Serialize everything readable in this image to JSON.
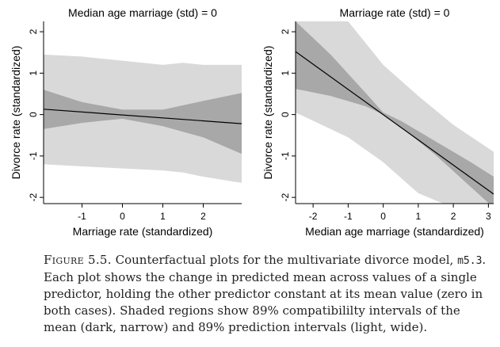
{
  "chart_data": [
    {
      "type": "line",
      "title": "Median age marriage (std) = 0",
      "xlabel": "Marriage rate (standardized)",
      "ylabel": "Divorce rate (standardized)",
      "xlim": [
        -1.95,
        2.95
      ],
      "ylim": [
        -2.15,
        2.25
      ],
      "xticks": [
        -1,
        0,
        1,
        2
      ],
      "yticks": [
        -2,
        -1,
        0,
        1,
        2
      ],
      "mean_line": {
        "x": [
          -1.95,
          2.95
        ],
        "y": [
          0.13,
          -0.22
        ]
      },
      "compatibility_interval_89": {
        "x": [
          -1.95,
          -1.0,
          0.0,
          1.0,
          2.0,
          2.95
        ],
        "lower": [
          -0.35,
          -0.2,
          -0.1,
          -0.28,
          -0.55,
          -0.95
        ],
        "upper": [
          0.6,
          0.3,
          0.12,
          0.12,
          0.33,
          0.52
        ]
      },
      "prediction_interval_89": {
        "x": [
          -1.95,
          -1.0,
          0.0,
          1.0,
          1.5,
          2.0,
          2.95
        ],
        "lower": [
          -1.2,
          -1.25,
          -1.3,
          -1.35,
          -1.4,
          -1.5,
          -1.65
        ],
        "upper": [
          1.45,
          1.4,
          1.3,
          1.2,
          1.25,
          1.2,
          1.2
        ]
      }
    },
    {
      "type": "line",
      "title": "Marriage rate (std) = 0",
      "xlabel": "Median age marriage (standardized)",
      "ylabel": "Divorce rate (standardized)",
      "xlim": [
        -2.5,
        3.15
      ],
      "ylim": [
        -2.15,
        2.25
      ],
      "xticks": [
        -2,
        -1,
        0,
        1,
        2,
        3
      ],
      "yticks": [
        -2,
        -1,
        0,
        1,
        2
      ],
      "mean_line": {
        "x": [
          -2.5,
          3.15
        ],
        "y": [
          1.52,
          -1.92
        ]
      },
      "compatibility_interval_89": {
        "x": [
          -2.5,
          -1.5,
          -0.5,
          0.0,
          0.5,
          1.5,
          2.5,
          3.15
        ],
        "lower": [
          0.62,
          0.45,
          0.2,
          0.0,
          -0.3,
          -0.98,
          -1.75,
          -2.25
        ],
        "upper": [
          2.25,
          1.45,
          0.52,
          0.05,
          -0.15,
          -0.65,
          -1.15,
          -1.5
        ]
      },
      "prediction_interval_89": {
        "x": [
          -2.5,
          -1.0,
          0.0,
          1.0,
          2.0,
          3.15
        ],
        "lower": [
          0.05,
          -0.55,
          -1.15,
          -1.9,
          -2.25,
          -2.25
        ],
        "upper": [
          2.25,
          2.25,
          1.2,
          0.45,
          -0.25,
          -0.9
        ]
      }
    }
  ],
  "caption": {
    "label": "Figure 5.5.",
    "text_before_code": "Counterfactual plots for the multivariate divorce model,",
    "code": "m5.3",
    "text_after_code": ". Each plot shows the change in predicted mean across values of a single predictor, holding the other predictor constant at its mean value (zero in both cases). Shaded regions show 89% compatibililty intervals of the mean (dark, narrow) and 89% prediction intervals (light, wide)."
  },
  "colors": {
    "prediction_band": "#d9d9d9",
    "compatibility_band": "#a8a8a8",
    "mean_line": "#000000"
  }
}
